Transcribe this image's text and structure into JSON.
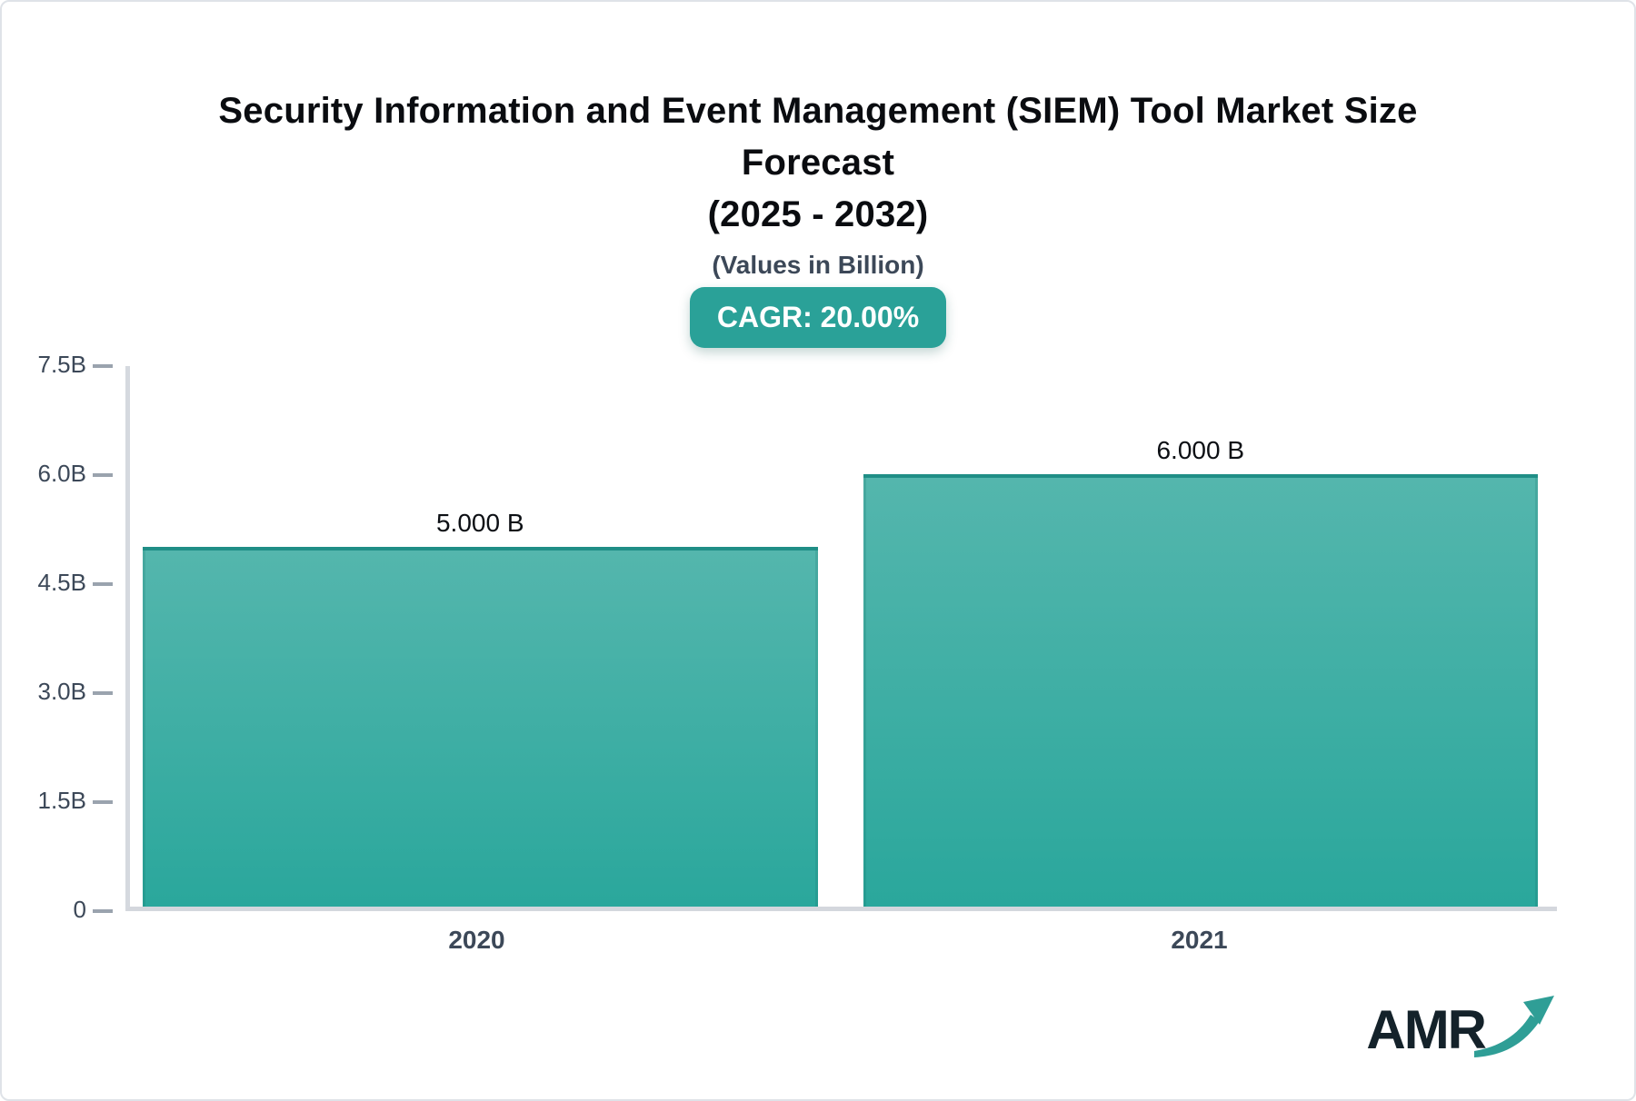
{
  "header": {
    "title_line1": "Security Information and Event Management (SIEM) Tool Market Size Forecast",
    "title_line2": "(2025 - 2032)",
    "subtitle": "(Values in Billion)",
    "cagr_badge": "CAGR: 20.00%"
  },
  "chart_data": {
    "type": "bar",
    "title": "Security Information and Event Management (SIEM) Tool Market Size Forecast (2025 - 2032)",
    "subtitle": "(Values in Billion)",
    "units": "Billion USD",
    "cagr_percent": 20.0,
    "categories": [
      "2020",
      "2021"
    ],
    "values": [
      5.0,
      6.0
    ],
    "bar_labels": [
      "5.000 B",
      "6.000 B"
    ],
    "xlabel": "",
    "ylabel": "",
    "ylim": [
      0,
      7.5
    ],
    "yticks": [
      {
        "value": 0,
        "label": "0"
      },
      {
        "value": 1.5,
        "label": "1.5B"
      },
      {
        "value": 3.0,
        "label": "3.0B"
      },
      {
        "value": 4.5,
        "label": "4.5B"
      },
      {
        "value": 6.0,
        "label": "6.0B"
      },
      {
        "value": 7.5,
        "label": "7.5B"
      }
    ],
    "grid": false,
    "legend": false
  },
  "colors": {
    "badge_bg": "#2aa198",
    "bar_gradient_top": "#54b6ad",
    "bar_gradient_bottom": "#2aa79c",
    "bar_top_border": "#1f8e86",
    "axis_line": "#d5d9df",
    "tick_text": "#3c4858",
    "title_text": "#0a0c10"
  },
  "logo": {
    "text": "AMR",
    "arrow_icon": "growth-arrow-icon"
  }
}
